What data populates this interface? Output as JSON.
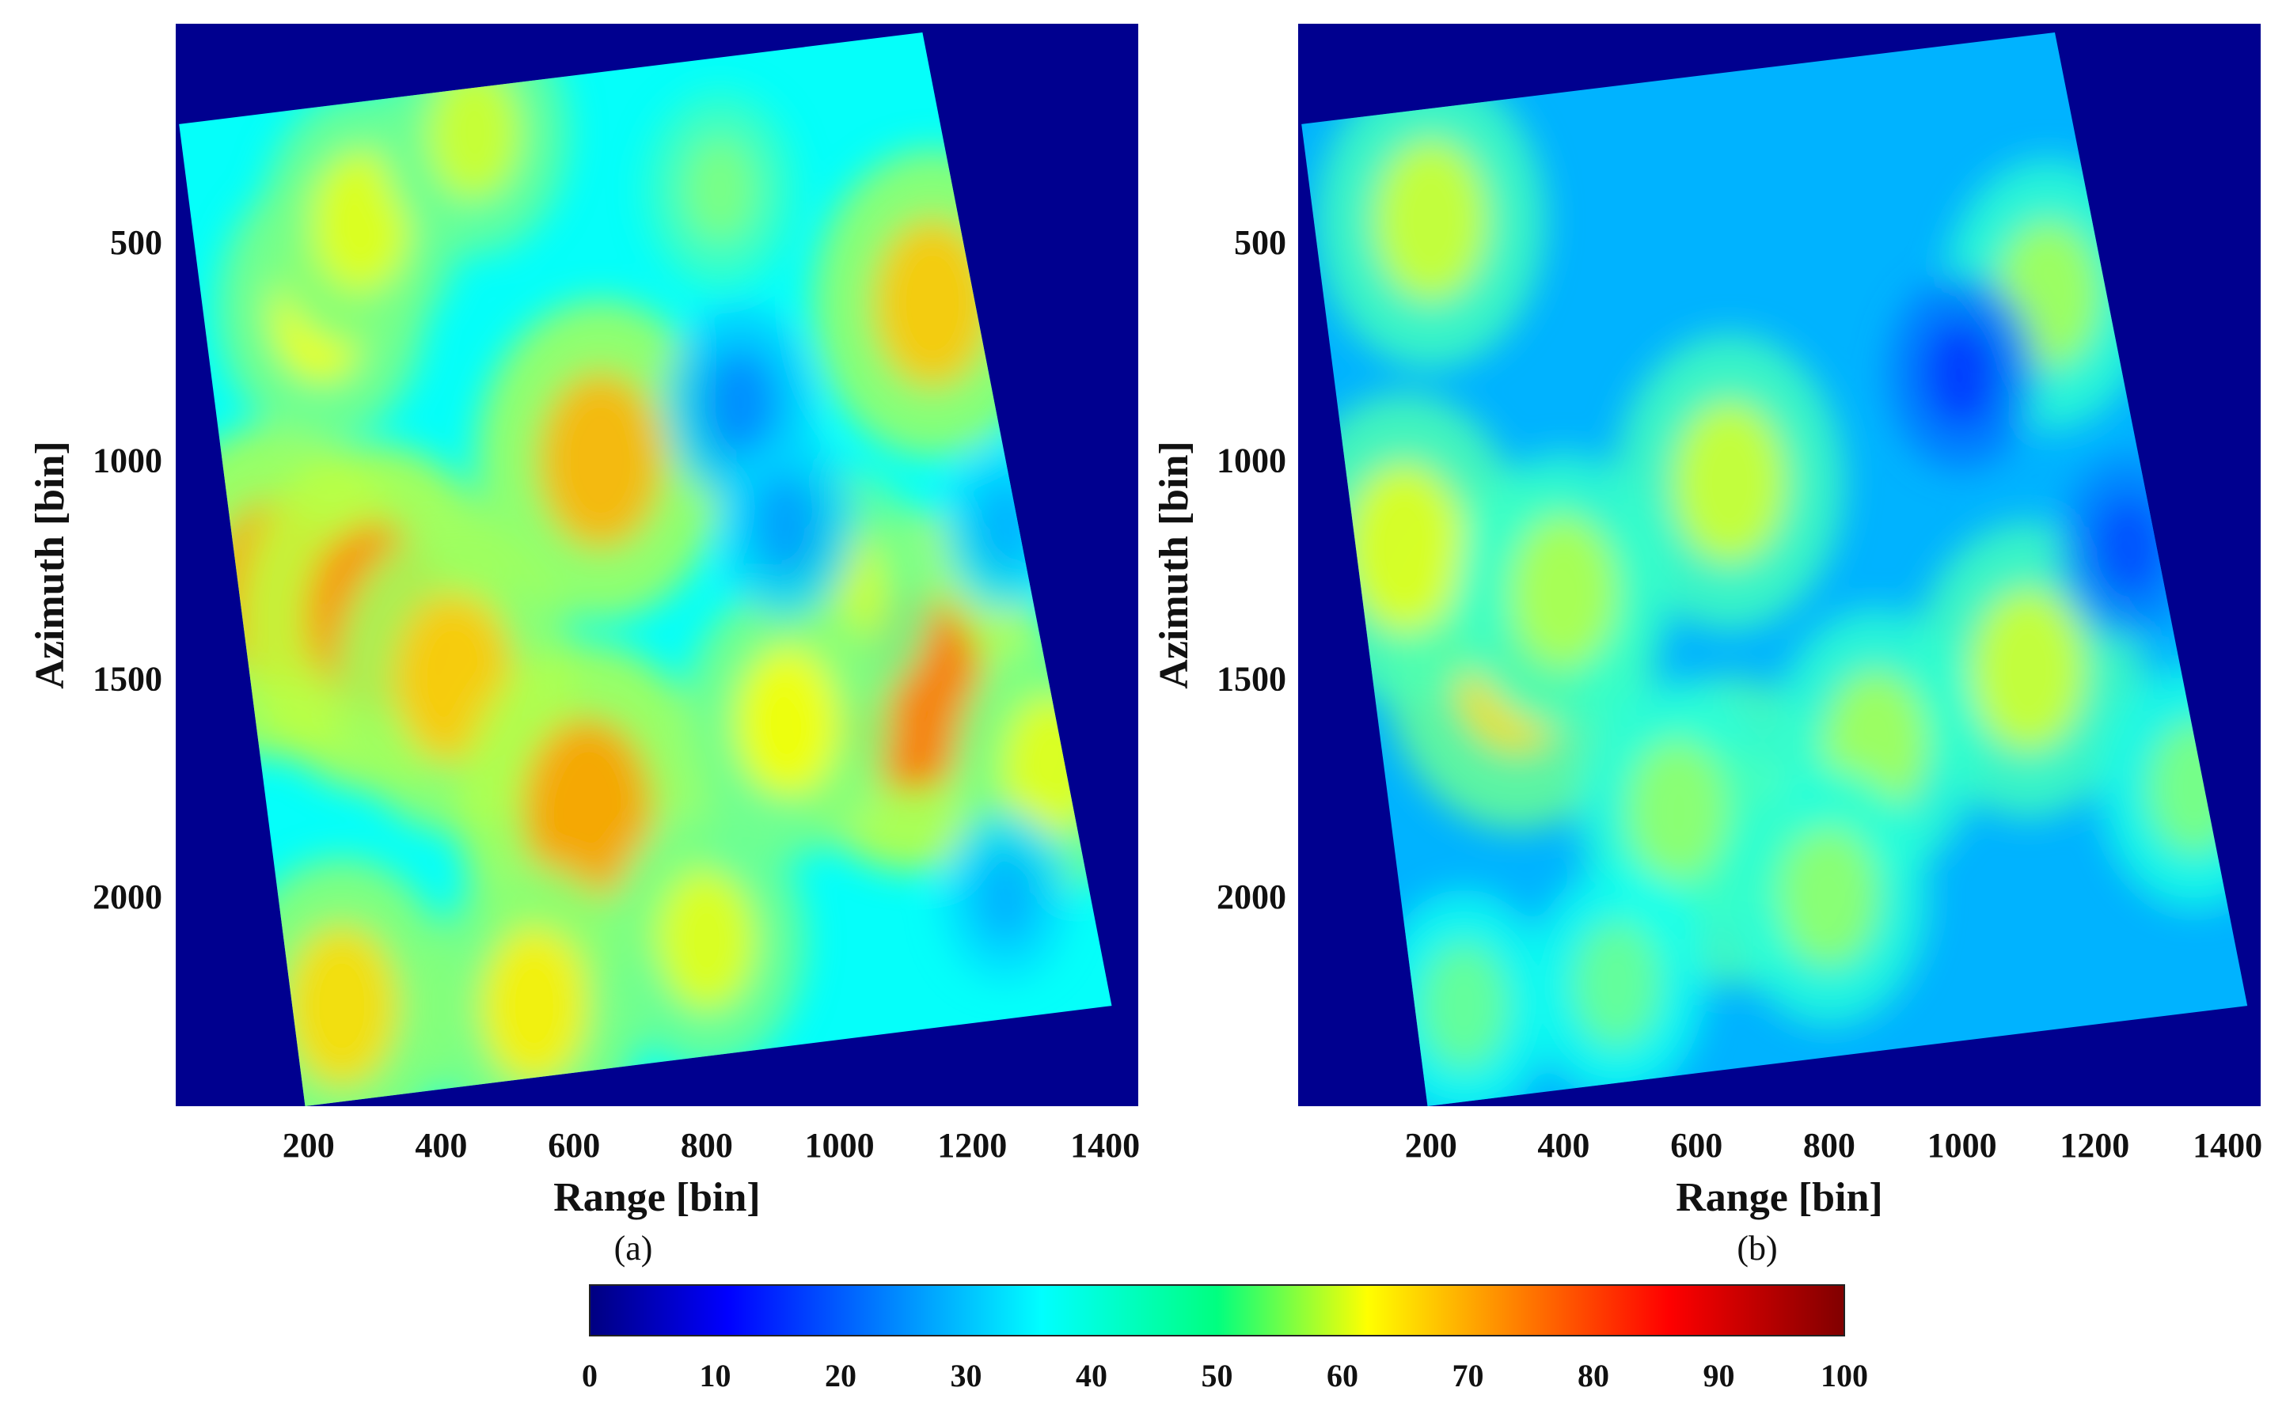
{
  "chart_data": [
    {
      "type": "heatmap",
      "panel_label": "(a)",
      "xlabel": "Range [bin]",
      "ylabel": "Azimuth [bin]",
      "xticks": [
        200,
        400,
        600,
        800,
        1000,
        1200,
        1400
      ],
      "xtick_labels": [
        "200",
        "400",
        "600",
        "800",
        "1000",
        "1200",
        "1400"
      ],
      "yticks": [
        500,
        1000,
        1500,
        2000
      ],
      "ytick_labels": [
        "500",
        "1000",
        "1500",
        "2000"
      ],
      "xlim": [
        0,
        1450
      ],
      "ylim": [
        2480,
        0
      ],
      "footprint_corners": [
        [
          5,
          230
        ],
        [
          1125,
          20
        ],
        [
          1410,
          2250
        ],
        [
          195,
          2480
        ]
      ],
      "background_value": 0,
      "field_base_value": 38,
      "hotspots": [
        {
          "x": 150,
          "y": 1300,
          "value": 72
        },
        {
          "x": 300,
          "y": 1360,
          "value": 74
        },
        {
          "x": 420,
          "y": 1500,
          "value": 68
        },
        {
          "x": 220,
          "y": 650,
          "value": 62
        },
        {
          "x": 280,
          "y": 450,
          "value": 60
        },
        {
          "x": 640,
          "y": 1000,
          "value": 70
        },
        {
          "x": 620,
          "y": 1800,
          "value": 72
        },
        {
          "x": 1110,
          "y": 1530,
          "value": 76
        },
        {
          "x": 1140,
          "y": 640,
          "value": 68
        },
        {
          "x": 1000,
          "y": 1300,
          "value": 58
        },
        {
          "x": 250,
          "y": 2250,
          "value": 66
        },
        {
          "x": 540,
          "y": 2250,
          "value": 64
        },
        {
          "x": 920,
          "y": 1600,
          "value": 62
        },
        {
          "x": 1320,
          "y": 1700,
          "value": 60
        },
        {
          "x": 800,
          "y": 2100,
          "value": 60
        },
        {
          "x": 450,
          "y": 250,
          "value": 58
        },
        {
          "x": 820,
          "y": 380,
          "value": 50
        },
        {
          "x": 850,
          "y": 870,
          "value": 26
        },
        {
          "x": 920,
          "y": 1150,
          "value": 28
        },
        {
          "x": 1250,
          "y": 1150,
          "value": 30
        },
        {
          "x": 1250,
          "y": 2000,
          "value": 30
        }
      ]
    },
    {
      "type": "heatmap",
      "panel_label": "(b)",
      "xlabel": "Range [bin]",
      "ylabel": "Azimuth [bin]",
      "xticks": [
        200,
        400,
        600,
        800,
        1000,
        1200,
        1400
      ],
      "xtick_labels": [
        "200",
        "400",
        "600",
        "800",
        "1000",
        "1200",
        "1400"
      ],
      "yticks": [
        500,
        1000,
        1500,
        2000
      ],
      "ytick_labels": [
        "500",
        "1000",
        "1500",
        "2000"
      ],
      "xlim": [
        0,
        1450
      ],
      "ylim": [
        2480,
        0
      ],
      "footprint_corners": [
        [
          5,
          230
        ],
        [
          1140,
          20
        ],
        [
          1430,
          2250
        ],
        [
          195,
          2480
        ]
      ],
      "background_value": 0,
      "field_base_value": 30,
      "hotspots": [
        {
          "x": 200,
          "y": 450,
          "value": 58
        },
        {
          "x": 330,
          "y": 1450,
          "value": 66
        },
        {
          "x": 160,
          "y": 1200,
          "value": 60
        },
        {
          "x": 650,
          "y": 1050,
          "value": 58
        },
        {
          "x": 650,
          "y": 1850,
          "value": 60
        },
        {
          "x": 1100,
          "y": 1480,
          "value": 58
        },
        {
          "x": 1130,
          "y": 620,
          "value": 54
        },
        {
          "x": 400,
          "y": 1300,
          "value": 55
        },
        {
          "x": 870,
          "y": 1650,
          "value": 54
        },
        {
          "x": 570,
          "y": 1800,
          "value": 52
        },
        {
          "x": 1350,
          "y": 1750,
          "value": 50
        },
        {
          "x": 800,
          "y": 2000,
          "value": 52
        },
        {
          "x": 480,
          "y": 2200,
          "value": 48
        },
        {
          "x": 250,
          "y": 2250,
          "value": 48
        },
        {
          "x": 1000,
          "y": 800,
          "value": 18
        },
        {
          "x": 1250,
          "y": 1200,
          "value": 20
        }
      ]
    }
  ],
  "colorbar": {
    "colormap": "jet",
    "vmin": 0,
    "vmax": 100,
    "ticks": [
      0,
      10,
      20,
      30,
      40,
      50,
      60,
      70,
      80,
      90,
      100
    ],
    "tick_labels": [
      "0",
      "10",
      "20",
      "30",
      "40",
      "50",
      "60",
      "70",
      "80",
      "90",
      "100"
    ],
    "orientation": "horizontal",
    "placement": "bottom"
  }
}
